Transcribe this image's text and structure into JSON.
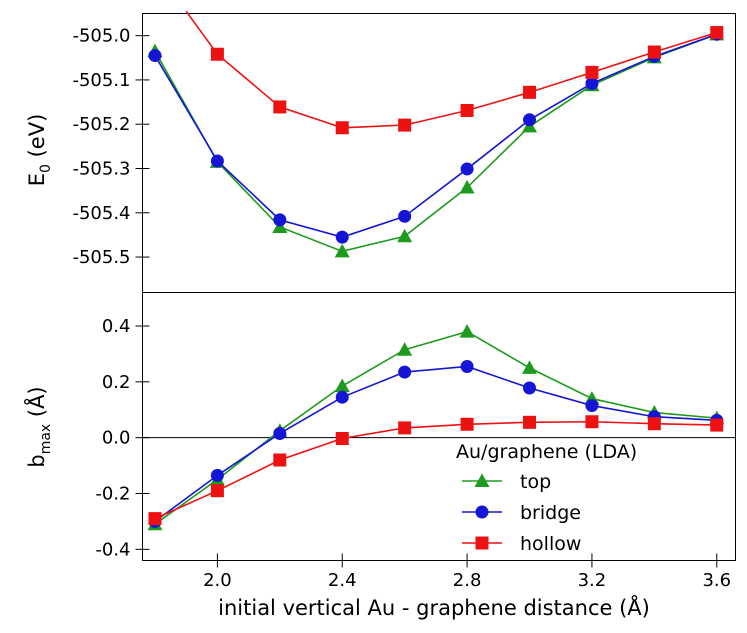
{
  "chart_data": [
    {
      "panel": "top",
      "type": "line",
      "ylabel": {
        "main": "E",
        "sub": "0",
        "rest": " (eV)"
      },
      "ylim": [
        -505.58,
        -504.95
      ],
      "yticks": [
        -505.5,
        -505.4,
        -505.3,
        -505.2,
        -505.1,
        -505.0
      ],
      "ytick_labels": [
        "-505.5",
        "-505.4",
        "-505.3",
        "-505.2",
        "-505.1",
        "-505.0"
      ],
      "x": [
        1.8,
        2.0,
        2.2,
        2.4,
        2.6,
        2.8,
        3.0,
        3.2,
        3.4,
        3.6
      ],
      "series": [
        {
          "key": "top",
          "color": "#1e9a1e",
          "marker": "triangle",
          "values": [
            -505.035,
            -505.285,
            -505.432,
            -505.487,
            -505.453,
            -505.343,
            -505.205,
            -505.112,
            -505.049,
            -504.997
          ]
        },
        {
          "key": "bridge",
          "color": "#1515d6",
          "marker": "circle",
          "values": [
            -505.045,
            -505.283,
            -505.416,
            -505.455,
            -505.408,
            -505.301,
            -505.19,
            -505.108,
            -505.047,
            -504.997
          ]
        },
        {
          "key": "hollow",
          "color": "#ee1111",
          "marker": "square",
          "line_start": [
            1.9,
            -504.945
          ],
          "values": [
            null,
            -505.042,
            -505.161,
            -505.208,
            -505.202,
            -505.169,
            -505.128,
            -505.083,
            -505.037,
            -504.993
          ]
        }
      ]
    },
    {
      "panel": "bottom",
      "type": "line",
      "ylabel": {
        "main": "b",
        "sub": "max",
        "rest": " (Å)"
      },
      "ylim": [
        -0.44,
        0.52
      ],
      "yticks": [
        -0.4,
        -0.2,
        0.0,
        0.2,
        0.4
      ],
      "ytick_labels": [
        "-0.4",
        "-0.2",
        "0.0",
        "0.2",
        "0.4"
      ],
      "zero_line": true,
      "x": [
        1.8,
        2.0,
        2.2,
        2.4,
        2.6,
        2.8,
        3.0,
        3.2,
        3.4,
        3.6
      ],
      "series": [
        {
          "key": "top",
          "color": "#1e9a1e",
          "marker": "triangle",
          "values": [
            -0.31,
            -0.15,
            0.025,
            0.185,
            0.315,
            0.38,
            0.25,
            0.14,
            0.09,
            0.07
          ]
        },
        {
          "key": "bridge",
          "color": "#1515d6",
          "marker": "circle",
          "values": [
            -0.3,
            -0.135,
            0.015,
            0.145,
            0.235,
            0.255,
            0.178,
            0.115,
            0.075,
            0.062
          ]
        },
        {
          "key": "hollow",
          "color": "#ee1111",
          "marker": "square",
          "values": [
            -0.29,
            -0.19,
            -0.08,
            -0.003,
            0.035,
            0.048,
            0.055,
            0.057,
            0.05,
            0.045
          ]
        }
      ]
    }
  ],
  "x_axis": {
    "xlim": [
      1.76,
      3.66
    ],
    "ticks": [
      2.0,
      2.4,
      2.8,
      3.2,
      3.6
    ],
    "tick_labels": [
      "2.0",
      "2.4",
      "2.8",
      "3.2",
      "3.6"
    ],
    "label": "initial vertical Au - graphene distance (Å)"
  },
  "legend": {
    "title": "Au/graphene (LDA)",
    "placement": "bottom-right of lower panel",
    "entries": [
      {
        "key": "top",
        "label": "top"
      },
      {
        "key": "bridge",
        "label": "bridge"
      },
      {
        "key": "hollow",
        "label": "hollow"
      }
    ]
  },
  "colors": {
    "top": "#1e9a1e",
    "bridge": "#1515d6",
    "hollow": "#ee1111"
  }
}
